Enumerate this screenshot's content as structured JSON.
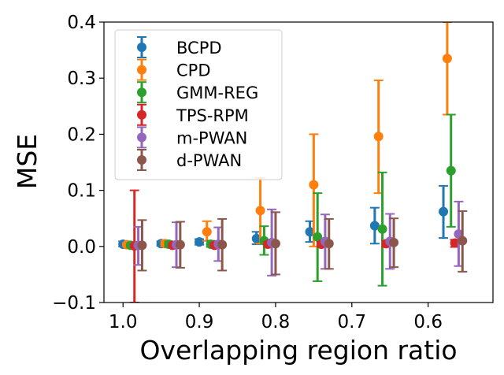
{
  "chart_data": {
    "type": "scatter",
    "subtype": "errorbar",
    "title": "",
    "xlabel": "Overlapping region ratio",
    "ylabel": "MSE",
    "x_tick_labels": [
      "1.0",
      "0.9",
      "0.8",
      "0.7",
      "0.6"
    ],
    "x_tick_values": [
      1.0,
      0.9,
      0.8,
      0.7,
      0.6
    ],
    "x_reversed": true,
    "xlim": [
      1.025,
      0.515
    ],
    "ylim": [
      -0.1,
      0.4
    ],
    "y_ticks": [
      -0.1,
      0.0,
      0.1,
      0.2,
      0.3,
      0.4
    ],
    "y_tick_labels": [
      "−0.1",
      "0.0",
      "0.1",
      "0.2",
      "0.3",
      "0.4"
    ],
    "grid": false,
    "legend_position": "top-left",
    "series": [
      {
        "name": "BCPD",
        "color": "#1f77b4",
        "x": [
          1.0,
          0.95,
          0.9,
          0.825,
          0.755,
          0.67,
          0.58
        ],
        "y": [
          0.004,
          0.005,
          0.008,
          0.014,
          0.026,
          0.037,
          0.062
        ],
        "yerr_low": [
          0.0,
          0.001,
          0.003,
          0.004,
          0.008,
          0.005,
          0.015
        ],
        "yerr_high": [
          0.009,
          0.009,
          0.013,
          0.026,
          0.045,
          0.069,
          0.108
        ]
      },
      {
        "name": "CPD",
        "color": "#ff7f0e",
        "x": [
          0.995,
          0.945,
          0.89,
          0.82,
          0.75,
          0.665,
          0.575
        ],
        "y": [
          0.003,
          0.005,
          0.026,
          0.064,
          0.11,
          0.196,
          0.335
        ],
        "yerr_low": [
          0.0,
          0.0,
          0.01,
          0.005,
          0.0,
          0.095,
          0.235
        ],
        "yerr_high": [
          0.006,
          0.01,
          0.045,
          0.122,
          0.2,
          0.296,
          0.4
        ]
      },
      {
        "name": "GMM-REG",
        "color": "#2ca02c",
        "x": [
          0.99,
          0.94,
          0.885,
          0.815,
          0.745,
          0.66,
          0.57
        ],
        "y": [
          0.002,
          0.004,
          0.004,
          0.01,
          0.017,
          0.031,
          0.135
        ],
        "yerr_low": [
          -0.001,
          -0.001,
          -0.001,
          -0.015,
          -0.062,
          -0.07,
          0.035
        ],
        "yerr_high": [
          0.005,
          0.009,
          0.01,
          0.036,
          0.095,
          0.132,
          0.235
        ]
      },
      {
        "name": "TPS-RPM",
        "color": "#d62728",
        "x": [
          0.985,
          0.935,
          0.88,
          0.81,
          0.74,
          0.655,
          0.565
        ],
        "y": [
          0.001,
          0.002,
          0.002,
          0.004,
          0.004,
          0.005,
          0.006
        ],
        "yerr_low": [
          -0.1,
          -0.001,
          -0.001,
          -0.001,
          -0.001,
          -0.001,
          -0.001
        ],
        "yerr_high": [
          0.1,
          0.005,
          0.006,
          0.008,
          0.008,
          0.01,
          0.012
        ]
      },
      {
        "name": "m-PWAN",
        "color": "#9467bd",
        "x": [
          0.98,
          0.93,
          0.875,
          0.805,
          0.735,
          0.65,
          0.56
        ],
        "y": [
          0.002,
          0.003,
          0.004,
          0.007,
          0.009,
          0.009,
          0.022
        ],
        "yerr_low": [
          -0.033,
          -0.037,
          -0.026,
          -0.052,
          -0.04,
          -0.04,
          -0.035
        ],
        "yerr_high": [
          0.035,
          0.043,
          0.034,
          0.066,
          0.057,
          0.058,
          0.08
        ]
      },
      {
        "name": "d-PWAN",
        "color": "#8c564b",
        "x": [
          0.975,
          0.925,
          0.87,
          0.8,
          0.73,
          0.645,
          0.555
        ],
        "y": [
          0.002,
          0.003,
          0.003,
          0.005,
          0.005,
          0.007,
          0.01
        ],
        "yerr_low": [
          -0.043,
          -0.038,
          -0.043,
          -0.05,
          -0.04,
          -0.037,
          -0.045
        ],
        "yerr_high": [
          0.047,
          0.044,
          0.049,
          0.061,
          0.049,
          0.05,
          0.063
        ]
      }
    ]
  }
}
